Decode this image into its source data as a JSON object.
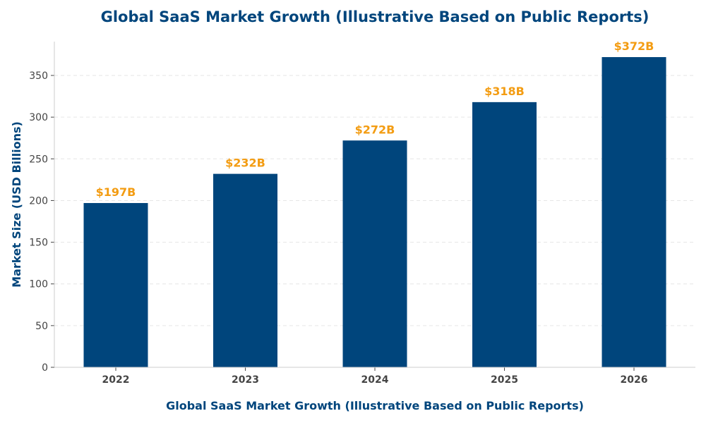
{
  "chart_data": {
    "type": "bar",
    "title": "Global SaaS Market Growth (Illustrative Based on Public Reports)",
    "xlabel": "Global SaaS Market Growth (Illustrative Based on Public Reports)",
    "ylabel": "Market Size (USD Billions)",
    "categories": [
      "2022",
      "2023",
      "2024",
      "2025",
      "2026"
    ],
    "values": [
      197,
      232,
      272,
      318,
      372
    ],
    "data_labels": [
      "$197B",
      "$232B",
      "$272B",
      "$318B",
      "$372B"
    ],
    "ylim": [
      0,
      390.6
    ],
    "yticks": [
      0,
      50,
      100,
      150,
      200,
      250,
      300,
      350
    ],
    "grid": "y-dashed",
    "colors": {
      "bar": "#00457C",
      "label": "#F39C12",
      "title": "#00457C",
      "grid": "#e6e6e6",
      "axis": "#cccccc"
    }
  }
}
